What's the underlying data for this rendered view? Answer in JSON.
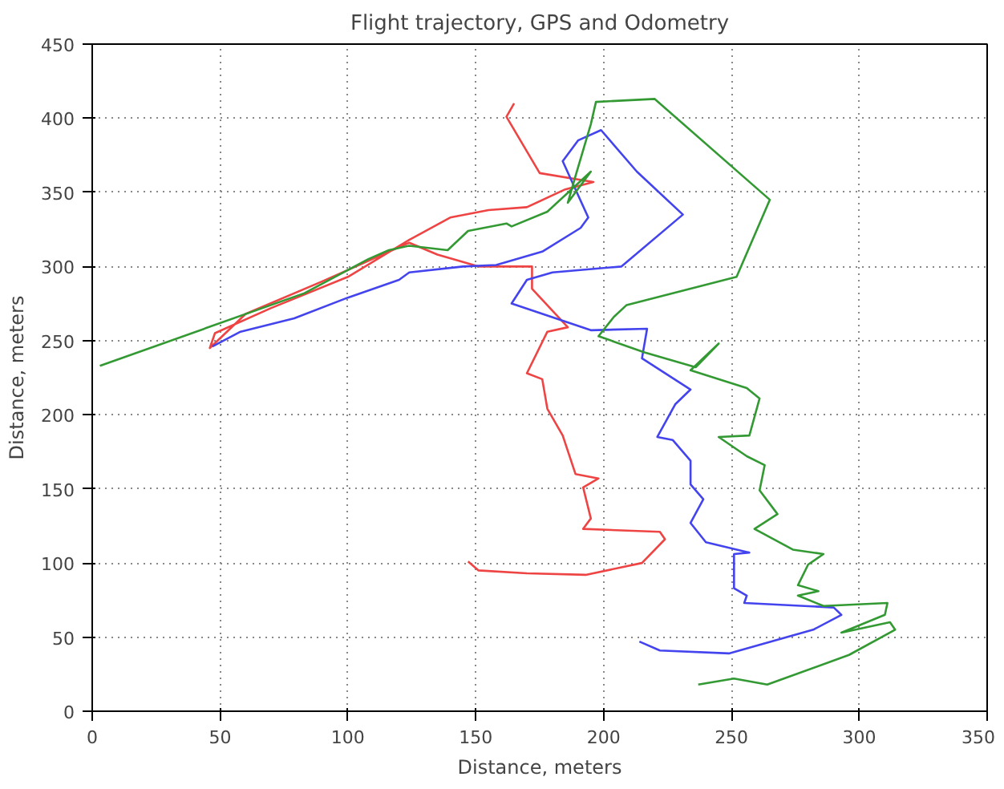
{
  "chart_data": {
    "type": "line",
    "title": "Flight trajectory, GPS and Odometry",
    "xlabel": "Distance, meters",
    "ylabel": "Distance, meters",
    "xlim": [
      0,
      350
    ],
    "ylim": [
      0,
      450
    ],
    "xticks": [
      0,
      50,
      100,
      150,
      200,
      250,
      300,
      350
    ],
    "yticks": [
      0,
      50,
      100,
      150,
      200,
      250,
      300,
      350,
      400,
      450
    ],
    "grid": true,
    "line_style": "solid",
    "series": [
      {
        "color": "#ee4444",
        "x": [
          147,
          151,
          170,
          193,
          215,
          224,
          222,
          192,
          195,
          192,
          198,
          189,
          184,
          178,
          176,
          170,
          178,
          186,
          172,
          172,
          151,
          135,
          124,
          90,
          60,
          46,
          48,
          70,
          100,
          124,
          140,
          155,
          170,
          185,
          196,
          175,
          162,
          165
        ],
        "values": [
          101,
          95,
          93,
          92,
          100,
          116,
          121,
          123,
          130,
          151,
          157,
          160,
          186,
          204,
          224,
          228,
          256,
          259,
          285,
          300,
          300,
          308,
          316,
          290,
          268,
          245,
          255,
          272,
          293,
          318,
          333,
          338,
          340,
          352,
          357,
          363,
          401,
          410
        ]
      },
      {
        "color": "#4444ee",
        "x": [
          214,
          222,
          249,
          282,
          293,
          290,
          255,
          256,
          251,
          251,
          257,
          240,
          234,
          239,
          234,
          234,
          227,
          221,
          228,
          234,
          215,
          217,
          195,
          164,
          170,
          180,
          207,
          231,
          213,
          199,
          190,
          184,
          194,
          191,
          176,
          158,
          145,
          124,
          120,
          100,
          79,
          58,
          47
        ],
        "values": [
          47,
          41,
          39,
          55,
          65,
          70,
          73,
          78,
          83,
          106,
          107,
          114,
          127,
          143,
          153,
          169,
          183,
          185,
          207,
          217,
          238,
          258,
          257,
          275,
          291,
          296,
          300,
          335,
          364,
          392,
          385,
          371,
          333,
          326,
          310,
          301,
          300,
          296,
          291,
          279,
          265,
          256,
          246
        ]
      },
      {
        "color": "#339933",
        "x": [
          237,
          251,
          264,
          296,
          314,
          312,
          293,
          310,
          311,
          286,
          276,
          284,
          276,
          280,
          286,
          274,
          259,
          268,
          261,
          263,
          256,
          245,
          257,
          261,
          256,
          234,
          245,
          236,
          216,
          198,
          204,
          209,
          252,
          265,
          220,
          197,
          195,
          189,
          186,
          195,
          178,
          164,
          162,
          147,
          139,
          124,
          116,
          108,
          83,
          3
        ],
        "values": [
          18,
          22,
          18,
          38,
          55,
          60,
          53,
          65,
          73,
          71,
          78,
          81,
          85,
          99,
          106,
          109,
          123,
          133,
          149,
          166,
          172,
          185,
          186,
          211,
          218,
          230,
          248,
          232,
          242,
          253,
          266,
          274,
          293,
          345,
          413,
          411,
          396,
          361,
          343,
          364,
          337,
          327,
          329,
          324,
          311,
          314,
          311,
          305,
          282,
          233
        ]
      }
    ]
  }
}
